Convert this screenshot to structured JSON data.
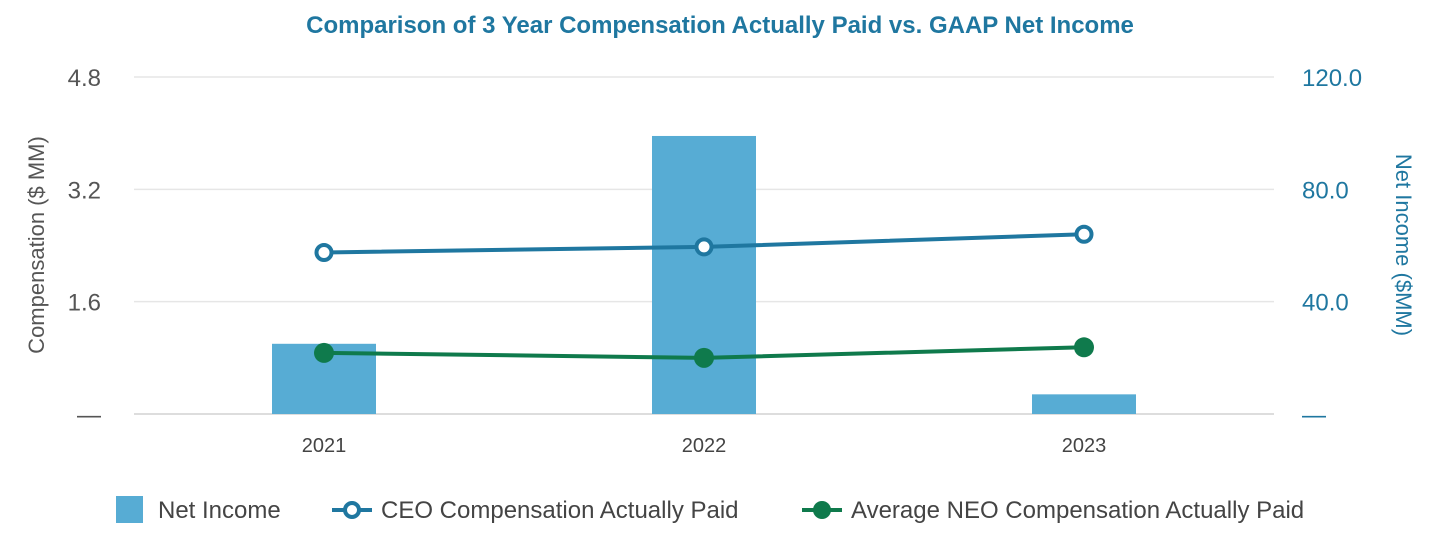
{
  "chart_data": {
    "type": "bar",
    "title": "Comparison of 3 Year Compensation Actually Paid vs. GAAP Net Income",
    "categories": [
      "2021",
      "2022",
      "2023"
    ],
    "y_left": {
      "label": "Compensation ($ MM)",
      "range": [
        0,
        4.8
      ],
      "ticks": [
        "—",
        "1.6",
        "3.2",
        "4.8"
      ],
      "tick_values": [
        0,
        1.6,
        3.2,
        4.8
      ]
    },
    "y_right": {
      "label": "Net Income ($MM)",
      "range": [
        0,
        120
      ],
      "ticks": [
        "—",
        "40.0",
        "80.0",
        "120.0"
      ],
      "tick_values": [
        0,
        40,
        80,
        120
      ]
    },
    "series": [
      {
        "name": "Net Income",
        "kind": "bar",
        "axis": "right",
        "color": "#57acd4",
        "values": [
          25,
          99,
          7
        ]
      },
      {
        "name": "CEO Compensation Actually Paid",
        "kind": "line",
        "axis": "left",
        "color": "#1f77a0",
        "marker": "open-circle",
        "values": [
          2.3,
          2.38,
          2.56
        ]
      },
      {
        "name": "Average NEO Compensation Actually Paid",
        "kind": "line",
        "axis": "left",
        "color": "#0f7a4c",
        "marker": "filled-circle",
        "values": [
          0.87,
          0.8,
          0.95
        ]
      }
    ],
    "grid": true,
    "legend": "bottom"
  }
}
